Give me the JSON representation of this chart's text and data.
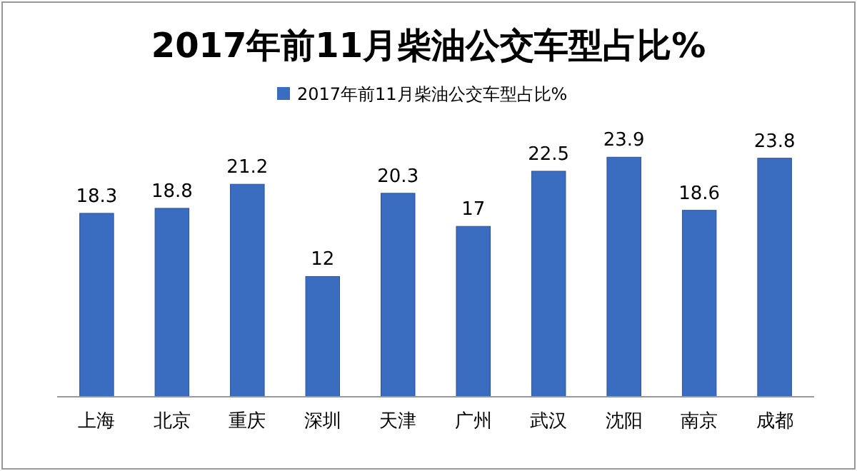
{
  "chart_data": {
    "type": "bar",
    "title": "2017年前11月柴油公交车型占比%",
    "categories": [
      "上海",
      "北京",
      "重庆",
      "深圳",
      "天津",
      "广州",
      "武汉",
      "沈阳",
      "南京",
      "成都"
    ],
    "series": [
      {
        "name": "2017年前11月柴油公交车型占比%",
        "color": "#3a6cc0",
        "values": [
          18.3,
          18.8,
          21.2,
          12,
          20.3,
          17,
          22.5,
          23.9,
          18.6,
          23.8
        ]
      }
    ],
    "data_labels": true,
    "legend": "top",
    "grid": false
  }
}
